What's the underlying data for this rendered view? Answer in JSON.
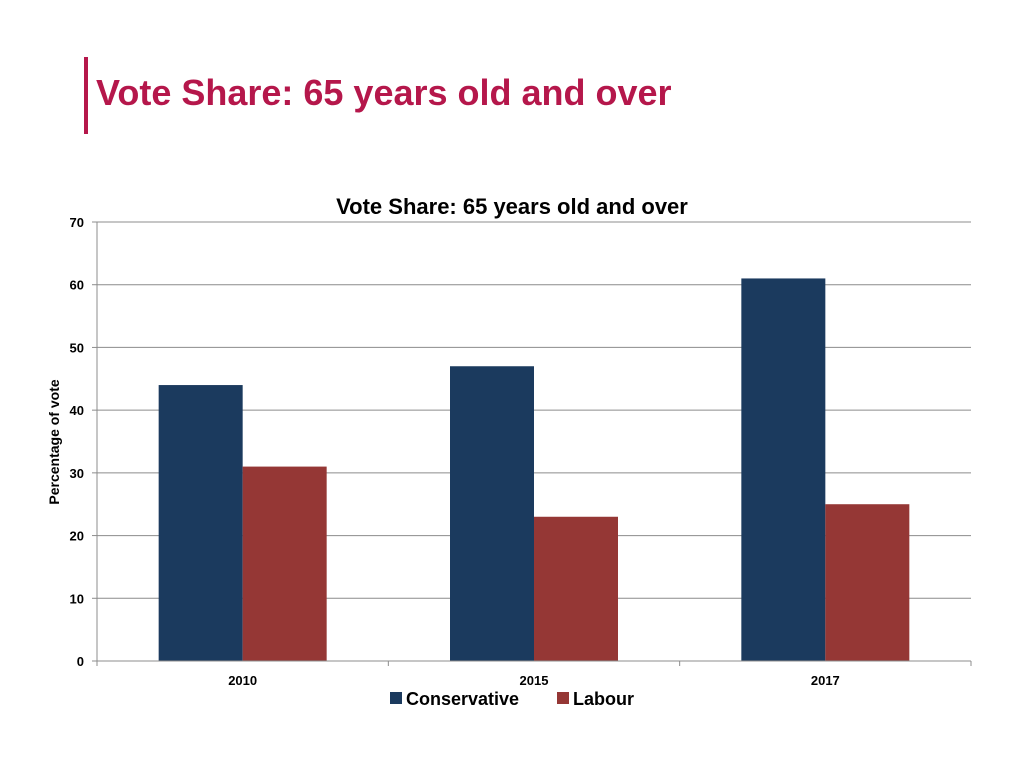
{
  "slide": {
    "title": "Vote Share: 65 years old and over",
    "accent_color": "#b5174b"
  },
  "chart_data": {
    "type": "bar",
    "title": "Vote Share: 65 years old and over",
    "xlabel": "",
    "ylabel": "Percentage of vote",
    "categories": [
      "2010",
      "2015",
      "2017"
    ],
    "series": [
      {
        "name": "Conservative",
        "values": [
          44,
          47,
          61
        ],
        "color": "#1b3a5e"
      },
      {
        "name": "Labour",
        "values": [
          31,
          23,
          25
        ],
        "color": "#953735"
      }
    ],
    "ylim": [
      0,
      70
    ],
    "yticks": [
      0,
      10,
      20,
      30,
      40,
      50,
      60,
      70
    ],
    "grid": true,
    "legend_position": "bottom"
  }
}
